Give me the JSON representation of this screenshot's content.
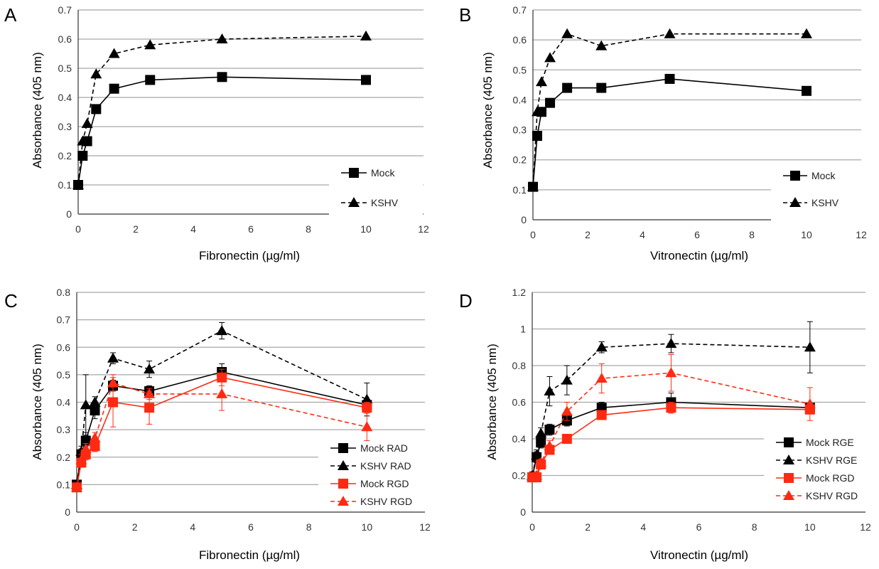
{
  "chart_data": [
    {
      "panel": "A",
      "type": "line",
      "xlabel": "Fibronectin (µg/ml)",
      "ylabel": "Absorbance (405 nm)",
      "xlim": [
        0,
        12
      ],
      "ylim": [
        0,
        0.7
      ],
      "xticks": [
        "0",
        "2",
        "4",
        "6",
        "8",
        "10",
        "12"
      ],
      "yticks": [
        "0",
        "0.1",
        "0.2",
        "0.3",
        "0.4",
        "0.5",
        "0.6",
        "0.7"
      ],
      "grid": "horizontal",
      "legend_position": "bottom-right",
      "series": [
        {
          "name": "Mock",
          "color": "#000000",
          "dash": "solid",
          "marker": "square",
          "x": [
            0,
            0.156,
            0.3125,
            0.625,
            1.25,
            2.5,
            5,
            10
          ],
          "y": [
            0.1,
            0.2,
            0.25,
            0.36,
            0.43,
            0.46,
            0.47,
            0.46
          ]
        },
        {
          "name": "KSHV",
          "color": "#000000",
          "dash": "dashed",
          "marker": "triangle",
          "x": [
            0,
            0.156,
            0.3125,
            0.625,
            1.25,
            2.5,
            5,
            10
          ],
          "y": [
            0.1,
            0.25,
            0.31,
            0.48,
            0.55,
            0.58,
            0.6,
            0.61
          ]
        }
      ]
    },
    {
      "panel": "B",
      "type": "line",
      "xlabel": "Vitronectin (µg/ml)",
      "ylabel": "Absorbance (405 nm)",
      "xlim": [
        0,
        12
      ],
      "ylim": [
        0,
        0.7
      ],
      "xticks": [
        "0",
        "2",
        "4",
        "6",
        "8",
        "10",
        "12"
      ],
      "yticks": [
        "0",
        "0.1",
        "0.2",
        "0.3",
        "0.4",
        "0.5",
        "0.6",
        "0.7"
      ],
      "grid": "horizontal",
      "legend_position": "bottom-right",
      "series": [
        {
          "name": "Mock",
          "color": "#000000",
          "dash": "solid",
          "marker": "square",
          "x": [
            0,
            0.156,
            0.3125,
            0.625,
            1.25,
            2.5,
            5,
            10
          ],
          "y": [
            0.11,
            0.28,
            0.36,
            0.39,
            0.44,
            0.44,
            0.47,
            0.43
          ]
        },
        {
          "name": "KSHV",
          "color": "#000000",
          "dash": "dashed",
          "marker": "triangle",
          "x": [
            0,
            0.156,
            0.3125,
            0.625,
            1.25,
            2.5,
            5,
            10
          ],
          "y": [
            0.11,
            0.36,
            0.46,
            0.54,
            0.62,
            0.58,
            0.62,
            0.62
          ]
        }
      ]
    },
    {
      "panel": "C",
      "type": "line",
      "xlabel": "Fibronectin (µg/ml)",
      "ylabel": "Absorbance (405 nm)",
      "xlim": [
        0,
        12
      ],
      "ylim": [
        0,
        0.8
      ],
      "xticks": [
        "0",
        "2",
        "4",
        "6",
        "8",
        "10",
        "12"
      ],
      "yticks": [
        "0",
        "0.1",
        "0.2",
        "0.3",
        "0.4",
        "0.5",
        "0.6",
        "0.7",
        "0.8"
      ],
      "grid": "horizontal",
      "legend_position": "bottom-right",
      "series": [
        {
          "name": "Mock RAD",
          "color": "#000000",
          "dash": "solid",
          "marker": "square",
          "x": [
            0,
            0.156,
            0.3125,
            0.625,
            1.25,
            2.5,
            5,
            10
          ],
          "y": [
            0.1,
            0.21,
            0.26,
            0.37,
            0.46,
            0.44,
            0.51,
            0.39
          ],
          "err": [
            0.01,
            0.02,
            0.03,
            0.03,
            0.02,
            0.02,
            0.03,
            0.02
          ]
        },
        {
          "name": "KSHV RAD",
          "color": "#000000",
          "dash": "dashed",
          "marker": "triangle",
          "x": [
            0,
            0.156,
            0.3125,
            0.625,
            1.25,
            2.5,
            5,
            10
          ],
          "y": [
            0.1,
            0.22,
            0.39,
            0.4,
            0.56,
            0.52,
            0.66,
            0.41
          ],
          "err": [
            0.01,
            0.02,
            0.11,
            0.02,
            0.02,
            0.03,
            0.03,
            0.06
          ]
        },
        {
          "name": "Mock RGD",
          "color": "#ff2a12",
          "dash": "solid",
          "marker": "square",
          "x": [
            0,
            0.156,
            0.3125,
            0.625,
            1.25,
            2.5,
            5,
            10
          ],
          "y": [
            0.09,
            0.18,
            0.21,
            0.24,
            0.4,
            0.38,
            0.49,
            0.38
          ],
          "err": [
            0.01,
            0.01,
            0.02,
            0.02,
            0.09,
            0.06,
            0.03,
            0.02
          ]
        },
        {
          "name": "KSHV RGD",
          "color": "#ff2a12",
          "dash": "dashed",
          "marker": "triangle",
          "x": [
            0,
            0.156,
            0.3125,
            0.625,
            1.25,
            2.5,
            5,
            10
          ],
          "y": [
            0.09,
            0.19,
            0.23,
            0.27,
            0.47,
            0.43,
            0.43,
            0.31
          ],
          "err": [
            0.01,
            0.02,
            0.02,
            0.02,
            0.03,
            0.02,
            0.06,
            0.05
          ]
        }
      ]
    },
    {
      "panel": "D",
      "type": "line",
      "xlabel": "Vitronectin (µg/ml)",
      "ylabel": "Absorbance (405 nm)",
      "xlim": [
        0,
        12
      ],
      "ylim": [
        0,
        1.2
      ],
      "xticks": [
        "0",
        "2",
        "4",
        "6",
        "8",
        "10",
        "12"
      ],
      "yticks": [
        "0",
        "0.2",
        "0.4",
        "0.6",
        "0.8",
        "1",
        "1.2"
      ],
      "grid": "horizontal",
      "legend_position": "bottom-right",
      "series": [
        {
          "name": "Mock RGE",
          "color": "#000000",
          "dash": "solid",
          "marker": "square",
          "x": [
            0,
            0.156,
            0.3125,
            0.625,
            1.25,
            2.5,
            5,
            10
          ],
          "y": [
            0.19,
            0.3,
            0.38,
            0.45,
            0.5,
            0.57,
            0.6,
            0.57
          ],
          "err": [
            0.02,
            0.03,
            0.03,
            0.03,
            0.03,
            0.03,
            0.05,
            0.02
          ]
        },
        {
          "name": "KSHV RGE",
          "color": "#000000",
          "dash": "dashed",
          "marker": "triangle",
          "x": [
            0,
            0.156,
            0.3125,
            0.625,
            1.25,
            2.5,
            5,
            10
          ],
          "y": [
            0.2,
            0.31,
            0.43,
            0.66,
            0.72,
            0.9,
            0.92,
            0.9
          ],
          "err": [
            0.02,
            0.03,
            0.03,
            0.08,
            0.08,
            0.03,
            0.05,
            0.14
          ]
        },
        {
          "name": "Mock RGD",
          "color": "#ff2a12",
          "dash": "solid",
          "marker": "square",
          "x": [
            0,
            0.156,
            0.3125,
            0.625,
            1.25,
            2.5,
            5,
            10
          ],
          "y": [
            0.19,
            0.19,
            0.26,
            0.34,
            0.4,
            0.53,
            0.57,
            0.56
          ],
          "err": [
            0.02,
            0.02,
            0.02,
            0.02,
            0.02,
            0.02,
            0.03,
            0.02
          ]
        },
        {
          "name": "KSHV RGD",
          "color": "#ff2a12",
          "dash": "dashed",
          "marker": "triangle",
          "x": [
            0,
            0.156,
            0.3125,
            0.625,
            1.25,
            2.5,
            5,
            10
          ],
          "y": [
            0.19,
            0.2,
            0.27,
            0.36,
            0.55,
            0.73,
            0.76,
            0.59
          ],
          "err": [
            0.02,
            0.02,
            0.02,
            0.03,
            0.05,
            0.08,
            0.1,
            0.09
          ]
        }
      ]
    }
  ]
}
